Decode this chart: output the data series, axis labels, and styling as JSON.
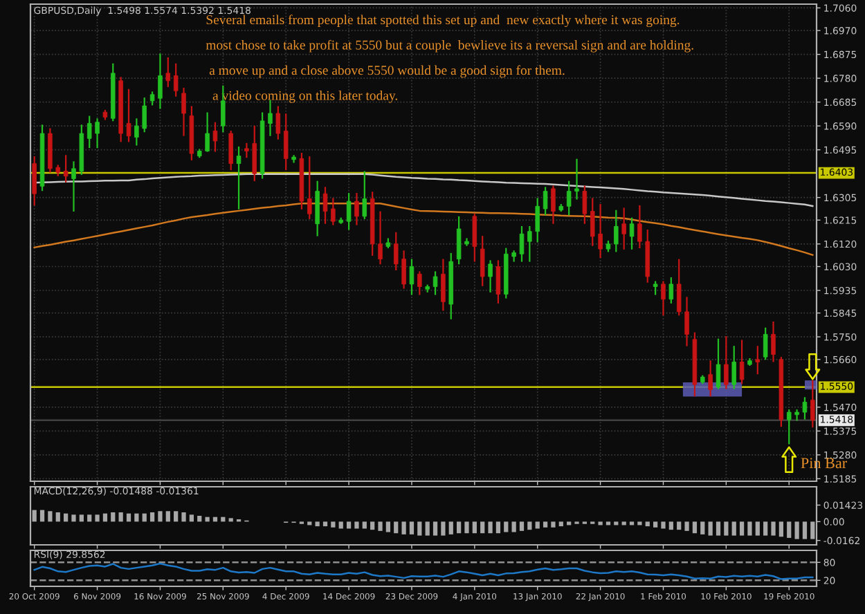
{
  "chart_data": [
    {
      "type": "candlestick",
      "title": "GBPUSD,Daily  1.5498 1.5574 1.5392 1.5418",
      "categories": [
        null,
        null,
        null,
        null,
        null,
        null,
        null,
        null,
        null,
        null,
        null,
        null,
        null,
        null,
        null,
        null,
        null,
        null,
        null,
        null,
        null,
        null,
        null,
        null,
        null,
        null,
        null,
        null,
        null,
        null,
        null,
        null,
        null,
        null,
        null,
        null,
        null,
        null,
        null,
        null,
        null,
        null,
        null,
        null,
        null,
        null,
        null,
        null,
        null,
        null,
        null,
        null,
        null,
        null,
        null,
        null,
        null,
        null,
        null,
        null,
        null,
        null,
        null,
        null,
        null,
        null,
        null,
        null,
        null,
        null,
        null,
        null,
        null,
        null,
        null,
        null,
        null,
        null,
        null,
        null,
        null,
        null,
        null,
        null,
        null,
        null,
        null,
        null,
        null,
        null,
        null,
        null,
        null,
        null,
        null,
        null,
        null,
        null,
        null,
        null
      ],
      "ohlc": [
        [
          1.644,
          1.6466,
          1.6276,
          1.632
        ],
        [
          1.635,
          1.6592,
          1.6334,
          1.656
        ],
        [
          1.656,
          1.6578,
          1.6407,
          1.642
        ],
        [
          1.6425,
          1.6432,
          1.6393,
          1.6405
        ],
        [
          1.641,
          1.6471,
          1.6368,
          1.639
        ],
        [
          1.638,
          1.6446,
          1.6252,
          1.642
        ],
        [
          1.641,
          1.6592,
          1.6398,
          1.656
        ],
        [
          1.654,
          1.6627,
          1.6505,
          1.66
        ],
        [
          1.656,
          1.6617,
          1.6505,
          1.6605
        ],
        [
          1.6645,
          1.6651,
          1.6617,
          1.6625
        ],
        [
          1.662,
          1.6836,
          1.6612,
          1.68
        ],
        [
          1.677,
          1.6782,
          1.6529,
          1.656
        ],
        [
          1.66,
          1.6734,
          1.6529,
          1.655
        ],
        [
          1.6545,
          1.6617,
          1.6515,
          1.659
        ],
        [
          1.658,
          1.67,
          1.6568,
          1.667
        ],
        [
          1.669,
          1.6724,
          1.6675,
          1.6715
        ],
        [
          1.67,
          1.6875,
          1.6661,
          1.679
        ],
        [
          1.68,
          1.686,
          1.6748,
          1.677
        ],
        [
          1.679,
          1.6836,
          1.671,
          1.673
        ],
        [
          1.672,
          1.6739,
          1.6553,
          1.664
        ],
        [
          1.663,
          1.6666,
          1.6456,
          1.648
        ],
        [
          1.647,
          1.6495,
          1.6466,
          1.649
        ],
        [
          1.649,
          1.6641,
          1.649,
          1.656
        ],
        [
          1.657,
          1.6602,
          1.649,
          1.653
        ],
        [
          1.659,
          1.6748,
          1.6568,
          1.669
        ],
        [
          1.656,
          1.6568,
          1.6417,
          1.644
        ],
        [
          1.644,
          1.6505,
          1.6261,
          1.647
        ],
        [
          1.65,
          1.6519,
          1.6466,
          1.649
        ],
        [
          1.652,
          1.6588,
          1.6373,
          1.64
        ],
        [
          1.64,
          1.6641,
          1.6383,
          1.661
        ],
        [
          1.66,
          1.669,
          1.6553,
          1.664
        ],
        [
          1.664,
          1.6666,
          1.6539,
          1.656
        ],
        [
          1.657,
          1.6636,
          1.6417,
          1.646
        ],
        [
          1.6456,
          1.6471,
          1.6446,
          1.6466
        ],
        [
          1.646,
          1.648,
          1.6261,
          1.629
        ],
        [
          1.63,
          1.6466,
          1.6222,
          1.624
        ],
        [
          1.62,
          1.6368,
          1.6154,
          1.633
        ],
        [
          1.632,
          1.6344,
          1.6203,
          1.625
        ],
        [
          1.626,
          1.63,
          1.6198,
          1.621
        ],
        [
          1.6205,
          1.6222,
          1.6203,
          1.6215
        ],
        [
          1.621,
          1.632,
          1.6179,
          1.629
        ],
        [
          1.629,
          1.632,
          1.6198,
          1.623
        ],
        [
          1.623,
          1.6407,
          1.6222,
          1.63
        ],
        [
          1.63,
          1.6325,
          1.6076,
          1.612
        ],
        [
          1.612,
          1.6247,
          1.6042,
          1.606
        ],
        [
          1.611,
          1.614,
          1.6106,
          1.6125
        ],
        [
          1.612,
          1.6164,
          1.6018,
          1.604
        ],
        [
          1.606,
          1.6091,
          1.5945,
          1.596
        ],
        [
          1.596,
          1.6057,
          1.592,
          1.603
        ],
        [
          1.6,
          1.6008,
          1.592,
          1.595
        ],
        [
          1.594,
          1.5955,
          1.593,
          1.595
        ],
        [
          1.595,
          1.6008,
          1.592,
          1.599
        ],
        [
          1.6,
          1.6057,
          1.5857,
          1.589
        ],
        [
          1.588,
          1.6081,
          1.5823,
          1.605
        ],
        [
          1.606,
          1.6227,
          1.6042,
          1.618
        ],
        [
          1.612,
          1.614,
          1.6115,
          1.613
        ],
        [
          1.623,
          1.6237,
          1.6052,
          1.611
        ],
        [
          1.61,
          1.6149,
          1.5955,
          1.599
        ],
        [
          1.599,
          1.6052,
          1.593,
          1.604
        ],
        [
          1.603,
          1.6052,
          1.5886,
          1.592
        ],
        [
          1.592,
          1.6101,
          1.5906,
          1.608
        ],
        [
          1.607,
          1.6091,
          1.6052,
          1.6085
        ],
        [
          1.608,
          1.6188,
          1.6052,
          1.616
        ],
        [
          1.613,
          1.6188,
          1.6052,
          1.617
        ],
        [
          1.617,
          1.63,
          1.613,
          1.627
        ],
        [
          1.626,
          1.6344,
          1.6237,
          1.633
        ],
        [
          1.634,
          1.6349,
          1.6203,
          1.625
        ],
        [
          1.6255,
          1.6276,
          1.6252,
          1.627
        ],
        [
          1.627,
          1.6368,
          1.6237,
          1.633
        ],
        [
          1.633,
          1.6456,
          1.63,
          1.634
        ],
        [
          1.633,
          1.6349,
          1.6203,
          1.624
        ],
        [
          1.625,
          1.63,
          1.6115,
          1.615
        ],
        [
          1.616,
          1.6276,
          1.6067,
          1.61
        ],
        [
          1.61,
          1.613,
          1.6091,
          1.612
        ],
        [
          1.612,
          1.6252,
          1.6091,
          1.619
        ],
        [
          1.62,
          1.6261,
          1.6101,
          1.616
        ],
        [
          1.615,
          1.6222,
          1.6101,
          1.62
        ],
        [
          1.62,
          1.6271,
          1.6106,
          1.613
        ],
        [
          1.613,
          1.6174,
          1.5969,
          1.599
        ],
        [
          1.595,
          1.5969,
          1.592,
          1.596
        ],
        [
          1.596,
          1.5969,
          1.5838,
          1.59
        ],
        [
          1.59,
          1.5984,
          1.5886,
          1.596
        ],
        [
          1.596,
          1.6057,
          1.5838,
          1.585
        ],
        [
          1.585,
          1.5906,
          1.5716,
          1.576
        ],
        [
          1.574,
          1.5765,
          1.5516,
          1.556
        ],
        [
          1.557,
          1.5594,
          1.5565,
          1.559
        ],
        [
          1.56,
          1.5653,
          1.5516,
          1.554
        ],
        [
          1.555,
          1.574,
          1.5545,
          1.564
        ],
        [
          1.564,
          1.575,
          1.5545,
          1.556
        ],
        [
          1.556,
          1.5711,
          1.5545,
          1.565
        ],
        [
          1.565,
          1.5735,
          1.5565,
          1.558
        ],
        [
          1.564,
          1.5662,
          1.5638,
          1.5655
        ],
        [
          1.566,
          1.5711,
          1.5604,
          1.565
        ],
        [
          1.567,
          1.5784,
          1.5662,
          1.576
        ],
        [
          1.576,
          1.5808,
          1.5653,
          1.568
        ],
        [
          1.566,
          1.5667,
          1.5395,
          1.542
        ],
        [
          1.542,
          1.5458,
          1.5326,
          1.545
        ],
        [
          1.544,
          1.5458,
          1.5419,
          1.545
        ],
        [
          1.545,
          1.5507,
          1.5424,
          1.549
        ],
        [
          1.5498,
          1.5574,
          1.5392,
          1.5418
        ]
      ],
      "colors": [
        "#c81414",
        "#22c022",
        "#c81414",
        "#c81414",
        "#c81414",
        "#22c022",
        "#22c022",
        "#22c022",
        "#22c022",
        "#c81414",
        "#22c022",
        "#c81414",
        "#c81414",
        "#22c022",
        "#22c022",
        "#22c022",
        "#22c022",
        "#c81414",
        "#c81414",
        "#c81414",
        "#c81414",
        "#22c022",
        "#22c022",
        "#c81414",
        "#22c022",
        "#c81414",
        "#22c022",
        "#c81414",
        "#c81414",
        "#22c022",
        "#22c022",
        "#c81414",
        "#c81414",
        "#22c022",
        "#c81414",
        "#c81414",
        "#22c022",
        "#c81414",
        "#c81414",
        "#22c022",
        "#22c022",
        "#c81414",
        "#22c022",
        "#c81414",
        "#c81414",
        "#22c022",
        "#c81414",
        "#c81414",
        "#22c022",
        "#c81414",
        "#22c022",
        "#22c022",
        "#c81414",
        "#22c022",
        "#22c022",
        "#22c022",
        "#c81414",
        "#c81414",
        "#22c022",
        "#c81414",
        "#22c022",
        "#22c022",
        "#22c022",
        "#22c022",
        "#22c022",
        "#22c022",
        "#c81414",
        "#22c022",
        "#22c022",
        "#22c022",
        "#c81414",
        "#c81414",
        "#c81414",
        "#22c022",
        "#22c022",
        "#c81414",
        "#22c022",
        "#c81414",
        "#c81414",
        "#22c022",
        "#c81414",
        "#22c022",
        "#c81414",
        "#c81414",
        "#c81414",
        "#22c022",
        "#c81414",
        "#22c022",
        "#c81414",
        "#22c022",
        "#c81414",
        "#22c022",
        "#c81414",
        "#22c022",
        "#c81414",
        "#c81414",
        "#22c022",
        "#22c022",
        "#22c022",
        "#c81414"
      ],
      "series": [
        {
          "type": "line",
          "color": "#c8c8c8",
          "values": [
            1.6364,
            1.6365,
            1.6366,
            1.6367,
            1.6368,
            1.6369,
            1.6369,
            1.637,
            1.6371,
            1.6372,
            1.6372,
            1.6373,
            1.6373,
            1.6376,
            1.6378,
            1.6381,
            1.6383,
            1.6385,
            1.6387,
            1.6389,
            1.639,
            1.6392,
            1.6393,
            1.6394,
            1.6395,
            1.6396,
            1.6397,
            1.6398,
            1.6398,
            1.6398,
            1.6398,
            1.6398,
            1.6398,
            1.6398,
            1.6398,
            1.6398,
            1.6398,
            1.6398,
            1.6398,
            1.6398,
            1.6398,
            1.6398,
            1.6398,
            1.6396,
            1.6393,
            1.639,
            1.6387,
            1.6385,
            1.6383,
            1.6382,
            1.638,
            1.6379,
            1.6377,
            1.6376,
            1.6374,
            1.6373,
            1.6371,
            1.6369,
            1.6367,
            1.6366,
            1.6364,
            1.6363,
            1.6362,
            1.6361,
            1.636,
            1.6359,
            1.6357,
            1.6355,
            1.6353,
            1.6351,
            1.6349,
            1.6347,
            1.6345,
            1.6343,
            1.6341,
            1.6339,
            1.6336,
            1.6333,
            1.633,
            1.6328,
            1.6325,
            1.6323,
            1.6321,
            1.6319,
            1.6317,
            1.6315,
            1.6312,
            1.6309,
            1.6306,
            1.6303,
            1.63,
            1.6297,
            1.6294,
            1.6291,
            1.6289,
            1.6286,
            1.6283,
            1.628,
            1.6277,
            1.6271
          ]
        },
        {
          "type": "line",
          "color": "#d2781e",
          "values": [
            1.6106,
            1.6112,
            1.6117,
            1.6123,
            1.6129,
            1.6134,
            1.614,
            1.6146,
            1.6152,
            1.6158,
            1.6164,
            1.617,
            1.6176,
            1.6182,
            1.6188,
            1.6194,
            1.6201,
            1.6208,
            1.6214,
            1.6221,
            1.6227,
            1.6231,
            1.6235,
            1.624,
            1.6244,
            1.6248,
            1.6252,
            1.6256,
            1.626,
            1.6264,
            1.6267,
            1.6271,
            1.6274,
            1.6278,
            1.6281,
            1.6281,
            1.6281,
            1.6281,
            1.6281,
            1.6281,
            1.6281,
            1.6281,
            1.6281,
            1.6281,
            1.6281,
            1.6275,
            1.6269,
            1.6263,
            1.6257,
            1.6252,
            1.6251,
            1.625,
            1.6249,
            1.6248,
            1.6247,
            1.6246,
            1.6245,
            1.6244,
            1.6243,
            1.6243,
            1.6242,
            1.6241,
            1.624,
            1.6239,
            1.6237,
            1.6236,
            1.6235,
            1.6233,
            1.6232,
            1.6231,
            1.623,
            1.6229,
            1.6227,
            1.6225,
            1.6224,
            1.6222,
            1.6217,
            1.6212,
            1.6207,
            1.6203,
            1.6198,
            1.6192,
            1.6187,
            1.6181,
            1.6175,
            1.617,
            1.6164,
            1.6159,
            1.6154,
            1.6149,
            1.6144,
            1.614,
            1.6135,
            1.6128,
            1.612,
            1.6112,
            1.6103,
            1.6095,
            1.6086,
            1.6076
          ]
        }
      ],
      "ylim": [
        1.5175,
        1.7075
      ],
      "yticks": [
        {
          "value": 1.706,
          "label": "1.7060"
        },
        {
          "value": 1.697,
          "label": "1.6970"
        },
        {
          "value": 1.6875,
          "label": "1.6875"
        },
        {
          "value": 1.678,
          "label": "1.6780"
        },
        {
          "value": 1.6685,
          "label": "1.6685"
        },
        {
          "value": 1.659,
          "label": "1.6590"
        },
        {
          "value": 1.6495,
          "label": "1.6495"
        },
        {
          "value": 1.6305,
          "label": "1.6305"
        },
        {
          "value": 1.6215,
          "label": "1.6215"
        },
        {
          "value": 1.612,
          "label": "1.6120"
        },
        {
          "value": 1.603,
          "label": "1.6030"
        },
        {
          "value": 1.5935,
          "label": "1.5935"
        },
        {
          "value": 1.5845,
          "label": "1.5845"
        },
        {
          "value": 1.575,
          "label": "1.5750"
        },
        {
          "value": 1.566,
          "label": "1.5660"
        },
        {
          "value": 1.547,
          "label": "1.5470"
        },
        {
          "value": 1.5375,
          "label": "1.5375"
        },
        {
          "value": 1.528,
          "label": "1.5280"
        },
        {
          "value": 1.5185,
          "label": "1.5185"
        }
      ],
      "ref_lines": [
        {
          "axis": "y",
          "value": 1.6403,
          "label": "1.6403",
          "color": "#c8c800"
        },
        {
          "axis": "y",
          "value": 1.555,
          "label": "1.5550",
          "color": "#c8c800"
        },
        {
          "axis": "y",
          "value": 1.5418,
          "label": "1.5418",
          "color": "#404040"
        }
      ],
      "annotations": [
        "Several emails from people that spotted this set up and  new exactly where it was going.",
        "most chose to take profit at 5550 but a couple  bewlieve its a reversal sign and are holding.",
        " a move up and a close above 5550 would be a good sign for them.",
        "  a video coming on this later today.",
        "Pin Bar"
      ],
      "grid": true,
      "tick_labels": "y"
    },
    {
      "type": "bar",
      "title": "MACD(12,26,9) -0.01488 -0.01361",
      "color": "#a8a8a8",
      "categories": [
        null,
        null,
        null,
        null,
        null,
        null,
        null,
        null,
        null,
        null,
        null,
        null,
        null,
        null,
        null,
        null,
        null,
        null,
        null,
        null,
        null,
        null,
        null,
        null,
        null,
        null,
        null,
        null,
        null,
        null,
        null,
        null,
        null,
        null,
        null,
        null,
        null,
        null,
        null,
        null,
        null,
        null,
        null,
        null,
        null,
        null,
        null,
        null,
        null,
        null,
        null,
        null,
        null,
        null,
        null,
        null,
        null,
        null,
        null,
        null,
        null,
        null,
        null,
        null,
        null,
        null,
        null,
        null,
        null,
        null,
        null,
        null,
        null,
        null,
        null,
        null,
        null,
        null,
        null,
        null,
        null,
        null,
        null,
        null,
        null,
        null,
        null,
        null,
        null,
        null,
        null,
        null,
        null,
        null,
        null,
        null,
        null,
        null,
        null,
        null
      ],
      "values": [
        0.01,
        0.01,
        0.009,
        0.008,
        0.007,
        0.006,
        0.006,
        0.006,
        0.006,
        0.007,
        0.008,
        0.008,
        0.007,
        0.007,
        0.007,
        0.008,
        0.009,
        0.009,
        0.009,
        0.008,
        0.006,
        0.005,
        0.004,
        0.004,
        0.004,
        0.003,
        0.002,
        0.001,
        0.0,
        0.0,
        0.0,
        0.0,
        -0.001,
        -0.001,
        -0.002,
        -0.003,
        -0.004,
        -0.004,
        -0.005,
        -0.006,
        -0.006,
        -0.006,
        -0.006,
        -0.007,
        -0.008,
        -0.009,
        -0.01,
        -0.011,
        -0.011,
        -0.012,
        -0.012,
        -0.012,
        -0.012,
        -0.011,
        -0.01,
        -0.01,
        -0.01,
        -0.01,
        -0.01,
        -0.01,
        -0.009,
        -0.009,
        -0.008,
        -0.007,
        -0.006,
        -0.005,
        -0.005,
        -0.004,
        -0.003,
        -0.002,
        -0.002,
        -0.002,
        -0.003,
        -0.003,
        -0.003,
        -0.003,
        -0.003,
        -0.003,
        -0.004,
        -0.005,
        -0.006,
        -0.007,
        -0.007,
        -0.008,
        -0.01,
        -0.011,
        -0.012,
        -0.012,
        -0.012,
        -0.012,
        -0.012,
        -0.012,
        -0.012,
        -0.012,
        -0.012,
        -0.013,
        -0.014,
        -0.015,
        -0.015,
        -0.015
      ],
      "ylim": [
        -0.02,
        0.03
      ],
      "yticks": [
        {
          "value": 0.01423,
          "label": "0.01423"
        },
        {
          "value": 0,
          "label": "0.00"
        },
        {
          "value": -0.0162,
          "label": "-0.0162"
        }
      ],
      "tick_labels": "y"
    },
    {
      "type": "line",
      "title": "RSI(9) 29.8562",
      "color": "#1e78c8",
      "categories": [
        "20 Oct 2009",
        null,
        null,
        null,
        null,
        null,
        null,
        null,
        "6 Nov 2009",
        null,
        null,
        null,
        null,
        null,
        null,
        null,
        "16 Nov 2009",
        null,
        null,
        null,
        null,
        null,
        null,
        null,
        "25 Nov 2009",
        null,
        null,
        null,
        null,
        null,
        null,
        null,
        "4 Dec 2009",
        null,
        null,
        null,
        null,
        null,
        null,
        null,
        "14 Dec 2009",
        null,
        null,
        null,
        null,
        null,
        null,
        null,
        "23 Dec 2009",
        null,
        null,
        null,
        null,
        null,
        null,
        null,
        "4 Jan 2010",
        null,
        null,
        null,
        null,
        null,
        null,
        null,
        "13 Jan 2010",
        null,
        null,
        null,
        null,
        null,
        null,
        null,
        "22 Jan 2010",
        null,
        null,
        null,
        null,
        null,
        null,
        null,
        "1 Feb 2010",
        null,
        null,
        null,
        null,
        null,
        null,
        null,
        "10 Feb 2010",
        null,
        null,
        null,
        null,
        null,
        null,
        null,
        "19 Feb 2010",
        null,
        null,
        null
      ],
      "values": [
        55,
        65,
        60,
        50,
        48,
        55,
        62,
        68,
        70,
        66,
        75,
        62,
        58,
        62,
        66,
        70,
        76,
        70,
        66,
        58,
        52,
        52,
        57,
        55,
        62,
        50,
        46,
        48,
        45,
        58,
        62,
        56,
        50,
        50,
        42,
        40,
        45,
        42,
        40,
        40,
        45,
        42,
        47,
        38,
        34,
        36,
        32,
        28,
        34,
        33,
        33,
        36,
        32,
        40,
        50,
        47,
        42,
        37,
        42,
        37,
        43,
        44,
        48,
        50,
        56,
        60,
        55,
        57,
        60,
        60,
        52,
        47,
        44,
        45,
        50,
        48,
        50,
        46,
        40,
        39,
        37,
        40,
        37,
        33,
        26,
        27,
        26,
        33,
        31,
        35,
        33,
        35,
        33,
        38,
        34,
        24,
        26,
        26,
        30,
        30
      ],
      "ylim": [
        0,
        120
      ],
      "yticks": [
        80,
        20
      ],
      "ref_lines": [
        {
          "axis": "y",
          "value": 80,
          "color": "#909090",
          "line_style": "dashed"
        },
        {
          "axis": "y",
          "value": 20,
          "color": "#909090",
          "line_style": "dashed"
        }
      ]
    }
  ]
}
